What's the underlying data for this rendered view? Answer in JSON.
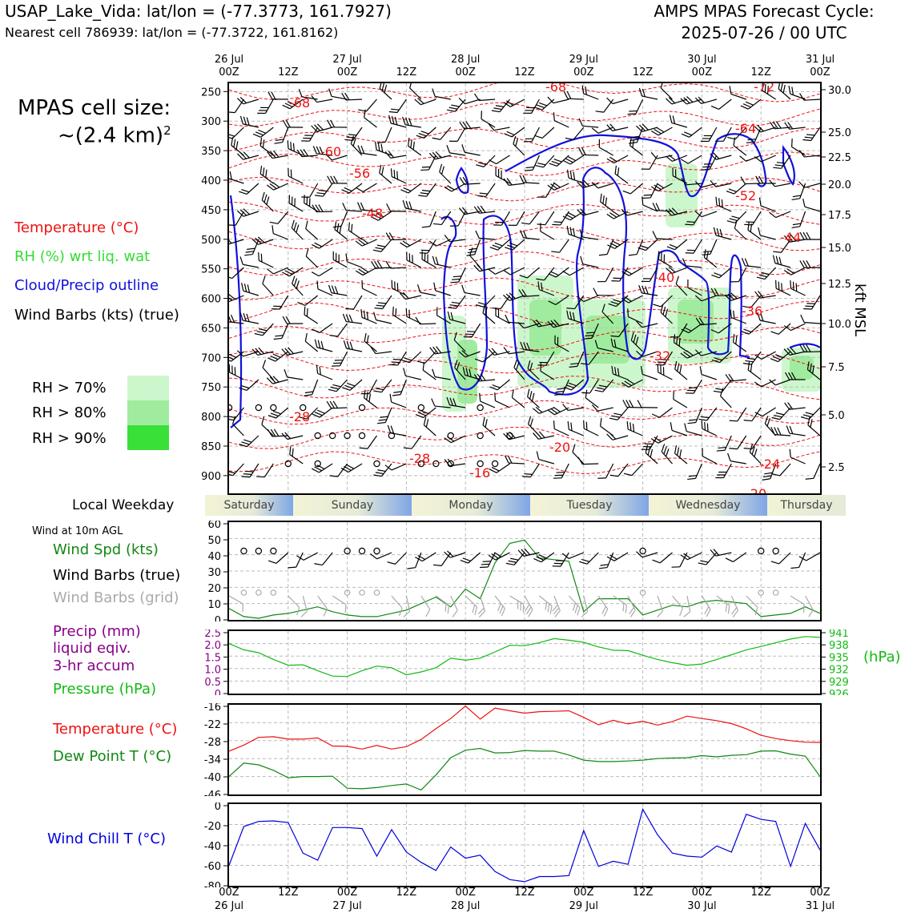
{
  "header": {
    "station_line": "USAP_Lake_Vida: lat/lon = (-77.3773, 161.7927)",
    "cell_line": "Nearest cell 786939: lat/lon = (-77.3722, 161.8162)",
    "cycle_line1": "AMPS MPAS Forecast Cycle:",
    "cycle_line2": "2025-07-26 / 00 UTC"
  },
  "cell_size": {
    "line1": "MPAS cell size:",
    "line2": "~(2.4 km)",
    "exponent": "2"
  },
  "legend": {
    "temperature": "Temperature (°C)",
    "rh": "RH (%) wrt liq. wat",
    "cloud": "Cloud/Precip outline",
    "barbs": "Wind Barbs (kts) (true)",
    "rh_levels": [
      {
        "label": "RH > 70%",
        "color": "#ccf7cc"
      },
      {
        "label": "RH > 80%",
        "color": "#a0ec9e"
      },
      {
        "label": "RH > 90%",
        "color": "#38e038"
      }
    ]
  },
  "colors": {
    "temperature": "#ee1111",
    "dewpoint": "#118811",
    "pressure": "#11bb11",
    "precip": "#880088",
    "windchill": "#0000dd",
    "cloud": "#1111dd",
    "barb_grid": "#aaaaaa"
  },
  "time_axis": {
    "top_days": [
      "26 Jul",
      "27 Jul",
      "28 Jul",
      "29 Jul",
      "30 Jul",
      "31 Jul"
    ],
    "hour_labels": [
      "00Z",
      "12Z",
      "00Z",
      "12Z",
      "00Z",
      "12Z",
      "00Z",
      "12Z",
      "00Z",
      "12Z",
      "00Z"
    ]
  },
  "weekday": {
    "label": "Local Weekday",
    "days": [
      "Saturday",
      "Sunday",
      "Monday",
      "Tuesday",
      "Wednesday",
      "Thursday"
    ]
  },
  "panel_labels": {
    "wind_title": "Wind at 10m AGL",
    "wind_spd": "Wind Spd (kts)",
    "wind_barbs": "Wind Barbs (true)",
    "wind_barbs_grid": "Wind Barbs (grid)",
    "precip": "Precip (mm)",
    "precip2": "liquid eqiv.",
    "precip3": "3-hr accum",
    "pressure": "Pressure (hPa)",
    "pressure_unit": "(hPa)",
    "temp": "Temperature (°C)",
    "dew": "Dew Point T (°C)",
    "windchill": "Wind Chill T (°C)"
  },
  "chart_data": [
    {
      "type": "heatmap",
      "y_left_ticks": [
        "250",
        "300",
        "350",
        "400",
        "450",
        "500",
        "550",
        "600",
        "650",
        "700",
        "750",
        "800",
        "850",
        "900"
      ],
      "y_right_ticks": [
        "30.0",
        "25.0",
        "22.5",
        "20.0",
        "17.5",
        "15.0",
        "12.5",
        "10.0",
        "7.5",
        "5.0",
        "2.5"
      ],
      "y_right_label": "kft MSL",
      "temp_labels": [
        "-68",
        "-68",
        "-72",
        "-64",
        "-60",
        "-56",
        "-52",
        "-48",
        "-44",
        "-40",
        "-36",
        "-32",
        "-28",
        "-28",
        "-24",
        "-20",
        "-20",
        "-16"
      ]
    },
    {
      "type": "line",
      "yticks": [
        "0",
        "10",
        "20",
        "30",
        "40",
        "50",
        "60"
      ],
      "ylim": [
        0,
        60
      ],
      "x_hours": [
        0,
        3,
        6,
        9,
        12,
        15,
        18,
        21,
        24,
        27,
        30,
        33,
        36,
        39,
        42,
        45,
        48,
        51,
        54,
        57,
        60,
        63,
        66,
        69,
        72,
        75,
        78,
        81,
        84,
        87,
        90,
        93,
        96,
        99,
        102,
        105,
        108,
        111,
        114,
        117,
        120
      ],
      "wind_speed": [
        7,
        2,
        1,
        3,
        4,
        6,
        8,
        5,
        3,
        2,
        2,
        4,
        6,
        10,
        14,
        8,
        19,
        13,
        35,
        47,
        49,
        38,
        37,
        36,
        5,
        13,
        13,
        13,
        3,
        6,
        9,
        8,
        11,
        12,
        11,
        10,
        2,
        3,
        4,
        8,
        4
      ]
    },
    {
      "type": "line",
      "precip_yticks": [
        "0",
        "0.5",
        "1.0",
        "1.5",
        "2.0",
        "2.5"
      ],
      "precip_ylim": [
        0,
        2.5
      ],
      "pressure_yticks": [
        "926",
        "929",
        "932",
        "935",
        "938",
        "941"
      ],
      "pressure_ylim": [
        926,
        941
      ],
      "x_hours": [
        0,
        3,
        6,
        9,
        12,
        15,
        18,
        21,
        24,
        27,
        30,
        33,
        36,
        39,
        42,
        45,
        48,
        51,
        54,
        57,
        60,
        63,
        66,
        69,
        72,
        75,
        78,
        81,
        84,
        87,
        90,
        93,
        96,
        99,
        102,
        105,
        108,
        111,
        114,
        117,
        120
      ],
      "pressure": [
        938,
        936.5,
        935.8,
        934.2,
        932.8,
        932.9,
        931.5,
        930.2,
        930.1,
        931.5,
        932.6,
        932.2,
        930.5,
        931.2,
        932.2,
        934.5,
        934,
        934.5,
        936,
        937.6,
        937.5,
        938.2,
        939.2,
        938.8,
        938.3,
        937.2,
        936.4,
        936.3,
        935.2,
        934.2,
        933.4,
        932.8,
        933.1,
        934.2,
        935.3,
        936.5,
        937.3,
        938.2,
        939.1,
        939.7,
        939.5
      ]
    },
    {
      "type": "line",
      "yticks": [
        "-16",
        "-22",
        "-28",
        "-34",
        "-40",
        "-46"
      ],
      "ylim": [
        -46,
        -16
      ],
      "x_hours": [
        0,
        3,
        6,
        9,
        12,
        15,
        18,
        21,
        24,
        27,
        30,
        33,
        36,
        39,
        42,
        45,
        48,
        51,
        54,
        57,
        60,
        63,
        66,
        69,
        72,
        75,
        78,
        81,
        84,
        87,
        90,
        93,
        96,
        99,
        102,
        105,
        108,
        111,
        114,
        117,
        120
      ],
      "temperature": [
        -31.5,
        -29.5,
        -26.9,
        -26.7,
        -27.5,
        -27.5,
        -27.1,
        -29.8,
        -29.9,
        -30.8,
        -29.6,
        -30.8,
        -30,
        -27.6,
        -24,
        -20.6,
        -16.4,
        -20.8,
        -17.1,
        -18,
        -18.8,
        -18.3,
        -18.2,
        -18,
        -20.2,
        -22.7,
        -21.2,
        -22.4,
        -21.5,
        -22.8,
        -21.6,
        -19.8,
        -20.6,
        -21.3,
        -22.3,
        -24,
        -26.2,
        -27.3,
        -28,
        -28.5,
        -28.6
      ],
      "dewpoint": [
        -40,
        -35.5,
        -36.1,
        -37.9,
        -40.4,
        -40,
        -40,
        -39.9,
        -43.9,
        -44.1,
        -43.7,
        -43,
        -42.5,
        -44.5,
        -39.5,
        -33.7,
        -31.2,
        -30.6,
        -32.1,
        -32,
        -31.3,
        -31.5,
        -31.5,
        -32.8,
        -34.5,
        -35,
        -35,
        -34.8,
        -34.5,
        -34,
        -33.8,
        -33.7,
        -33,
        -33.4,
        -32.9,
        -32.7,
        -31.5,
        -31.4,
        -32.5,
        -33.2,
        -40
      ]
    },
    {
      "type": "line",
      "yticks": [
        "0",
        "-20",
        "-40",
        "-60",
        "-80"
      ],
      "ylim": [
        -80,
        0
      ],
      "x_hours": [
        0,
        3,
        6,
        9,
        12,
        15,
        18,
        21,
        24,
        27,
        30,
        33,
        36,
        39,
        42,
        45,
        48,
        51,
        54,
        57,
        60,
        63,
        66,
        69,
        72,
        75,
        78,
        81,
        84,
        87,
        90,
        93,
        96,
        99,
        102,
        105,
        108,
        111,
        114,
        117,
        120
      ],
      "windchill": [
        -60,
        -22,
        -17,
        -16.5,
        -18,
        -48,
        -55,
        -23,
        -23,
        -24,
        -51,
        -25,
        -47,
        -57,
        -65,
        -42,
        -53,
        -50,
        -66,
        -74,
        -76,
        -71,
        -71,
        -70,
        -26,
        -61,
        -56,
        -59,
        -5,
        -30,
        -48,
        -51,
        -52,
        -41,
        -47,
        -10,
        -15,
        -17,
        -61,
        -19,
        -45
      ]
    }
  ]
}
